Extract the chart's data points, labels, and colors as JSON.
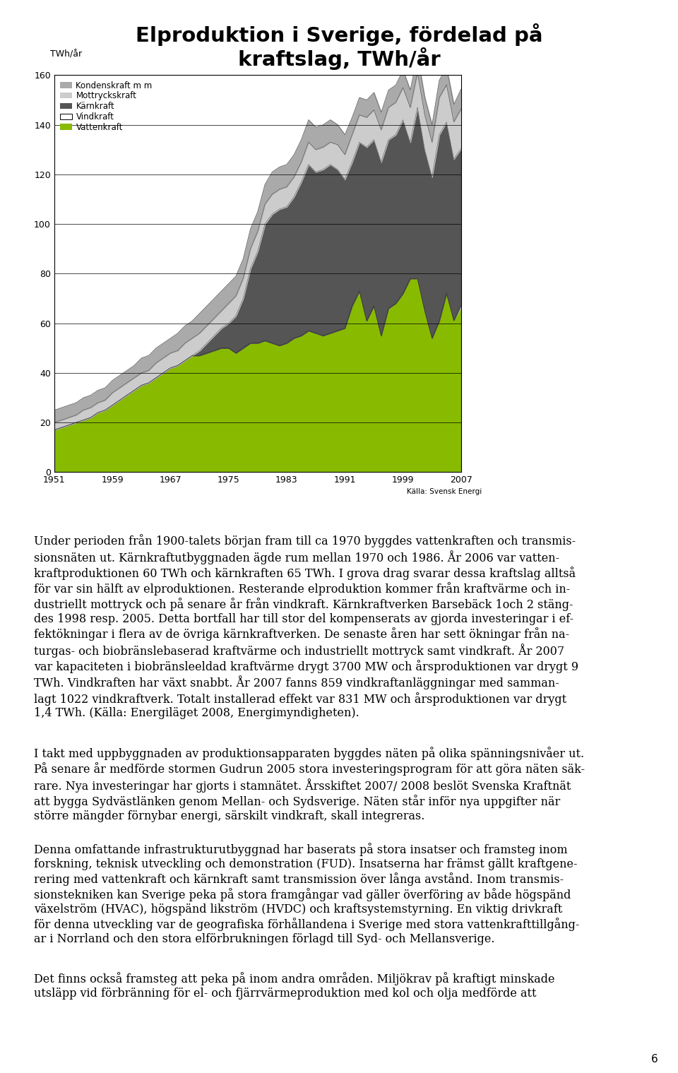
{
  "title_line1": "Elproduktion i Sverige, fördelad på",
  "title_line2": "kraftslag, TWh/år",
  "ylabel": "TWh/år",
  "xlabel_ticks": [
    1951,
    1959,
    1967,
    1975,
    1983,
    1991,
    1999,
    2007
  ],
  "ylim": [
    0,
    160
  ],
  "yticks": [
    0,
    20,
    40,
    60,
    80,
    100,
    120,
    140,
    160
  ],
  "source": "Källa: Svensk Energi",
  "legend": [
    "Kondenskraft m m",
    "Mottryckskraft",
    "Kärnkraft",
    "Vindkraft",
    "Vattenkraft"
  ],
  "legend_colors": [
    "#aaaaaa",
    "#cccccc",
    "#555555",
    "#ffffff",
    "#88bb00"
  ],
  "page_number": "6",
  "years": [
    1951,
    1952,
    1953,
    1954,
    1955,
    1956,
    1957,
    1958,
    1959,
    1960,
    1961,
    1962,
    1963,
    1964,
    1965,
    1966,
    1967,
    1968,
    1969,
    1970,
    1971,
    1972,
    1973,
    1974,
    1975,
    1976,
    1977,
    1978,
    1979,
    1980,
    1981,
    1982,
    1983,
    1984,
    1985,
    1986,
    1987,
    1988,
    1989,
    1990,
    1991,
    1992,
    1993,
    1994,
    1995,
    1996,
    1997,
    1998,
    1999,
    2000,
    2001,
    2002,
    2003,
    2004,
    2005,
    2006,
    2007
  ],
  "vattenkraft": [
    17,
    18,
    19,
    20,
    21,
    22,
    24,
    25,
    27,
    29,
    31,
    33,
    35,
    36,
    38,
    40,
    42,
    43,
    45,
    47,
    47,
    48,
    49,
    50,
    50,
    48,
    50,
    52,
    52,
    53,
    52,
    51,
    52,
    54,
    55,
    57,
    56,
    55,
    56,
    57,
    58,
    67,
    73,
    61,
    67,
    55,
    66,
    68,
    72,
    78,
    78,
    65,
    54,
    61,
    72,
    61,
    66
  ],
  "vindkraft": [
    0,
    0,
    0,
    0,
    0,
    0,
    0,
    0,
    0,
    0,
    0,
    0,
    0,
    0,
    0,
    0,
    0,
    0,
    0,
    0,
    0,
    0,
    0,
    0,
    0,
    0,
    0,
    0,
    0,
    0,
    0,
    0,
    0,
    0,
    0,
    0,
    0,
    0,
    0,
    0,
    0,
    0,
    0,
    0,
    0,
    0,
    0,
    0,
    0,
    0,
    0,
    0,
    0,
    0,
    0.1,
    0.2,
    1.4
  ],
  "karnkraft": [
    0,
    0,
    0,
    0,
    0,
    0,
    0,
    0,
    0,
    0,
    0,
    0,
    0,
    0,
    0,
    0,
    0,
    0,
    0,
    0,
    2,
    4,
    6,
    8,
    10,
    15,
    20,
    30,
    37,
    47,
    52,
    55,
    55,
    57,
    62,
    67,
    65,
    67,
    68,
    65,
    60,
    58,
    60,
    70,
    67,
    70,
    68,
    68,
    70,
    55,
    69,
    65,
    65,
    75,
    69,
    65,
    63
  ],
  "mottryck": [
    3,
    3,
    3,
    3,
    4,
    4,
    4,
    4,
    5,
    5,
    5,
    5,
    5,
    5,
    6,
    6,
    6,
    6,
    7,
    7,
    7,
    7,
    7,
    7,
    8,
    8,
    8,
    8,
    8,
    8,
    8,
    8,
    8,
    8,
    8,
    9,
    9,
    9,
    9,
    10,
    10,
    11,
    11,
    12,
    12,
    13,
    13,
    13,
    13,
    14,
    14,
    14,
    14,
    15,
    15,
    15,
    16
  ],
  "kondenskraft": [
    5,
    5,
    5,
    5,
    5,
    5,
    5,
    5,
    5,
    5,
    5,
    5,
    6,
    6,
    6,
    6,
    6,
    7,
    7,
    7,
    8,
    8,
    8,
    8,
    8,
    8,
    8,
    8,
    8,
    8,
    9,
    9,
    9,
    9,
    9,
    9,
    9,
    9,
    9,
    8,
    8,
    7,
    7,
    7,
    7,
    7,
    7,
    7,
    7,
    7,
    7,
    7,
    7,
    7,
    7,
    7,
    8
  ]
}
